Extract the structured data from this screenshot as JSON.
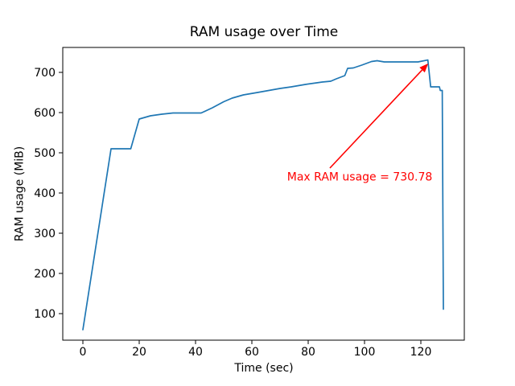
{
  "chart_data": {
    "type": "line",
    "title": "RAM usage over Time",
    "xlabel": "Time (sec)",
    "ylabel": "RAM usage (MiB)",
    "xlim": [
      -7.14,
      135.43
    ],
    "ylim": [
      34,
      762
    ],
    "xticks": [
      0,
      20,
      40,
      60,
      80,
      100,
      120
    ],
    "yticks": [
      100,
      200,
      300,
      400,
      500,
      600,
      700
    ],
    "grid": false,
    "legend_position": "none",
    "axis_color": "#000000",
    "background_color": "#ffffff",
    "series": [
      {
        "name": "RAM usage",
        "color": "#1f77b4",
        "line_width": 1.7,
        "points": [
          [
            0,
            60
          ],
          [
            10,
            510
          ],
          [
            17,
            510
          ],
          [
            20,
            584
          ],
          [
            24,
            592
          ],
          [
            28,
            596
          ],
          [
            32,
            599
          ],
          [
            42,
            599
          ],
          [
            46,
            612
          ],
          [
            50,
            627
          ],
          [
            53,
            636
          ],
          [
            57,
            644
          ],
          [
            62,
            650
          ],
          [
            66,
            655
          ],
          [
            70,
            660
          ],
          [
            74,
            664
          ],
          [
            79,
            670
          ],
          [
            83,
            674
          ],
          [
            85,
            676
          ],
          [
            88,
            678
          ],
          [
            90,
            684
          ],
          [
            93,
            692
          ],
          [
            94,
            710
          ],
          [
            96,
            711
          ],
          [
            99,
            718
          ],
          [
            102.5,
            727
          ],
          [
            104.5,
            729
          ],
          [
            107,
            726
          ],
          [
            119,
            726
          ],
          [
            122.5,
            730.78
          ],
          [
            123.5,
            664
          ],
          [
            126.6,
            664
          ],
          [
            126.9,
            655
          ],
          [
            127.6,
            655
          ],
          [
            128,
            111
          ]
        ]
      }
    ],
    "max_value": "730.78",
    "annotation": {
      "text": "Max RAM usage = 730.78",
      "color": "#ff0000",
      "text_xy": [
        98.3,
        438
      ],
      "arrow_from": [
        87.7,
        462
      ],
      "arrow_to": [
        122.6,
        722
      ]
    }
  }
}
